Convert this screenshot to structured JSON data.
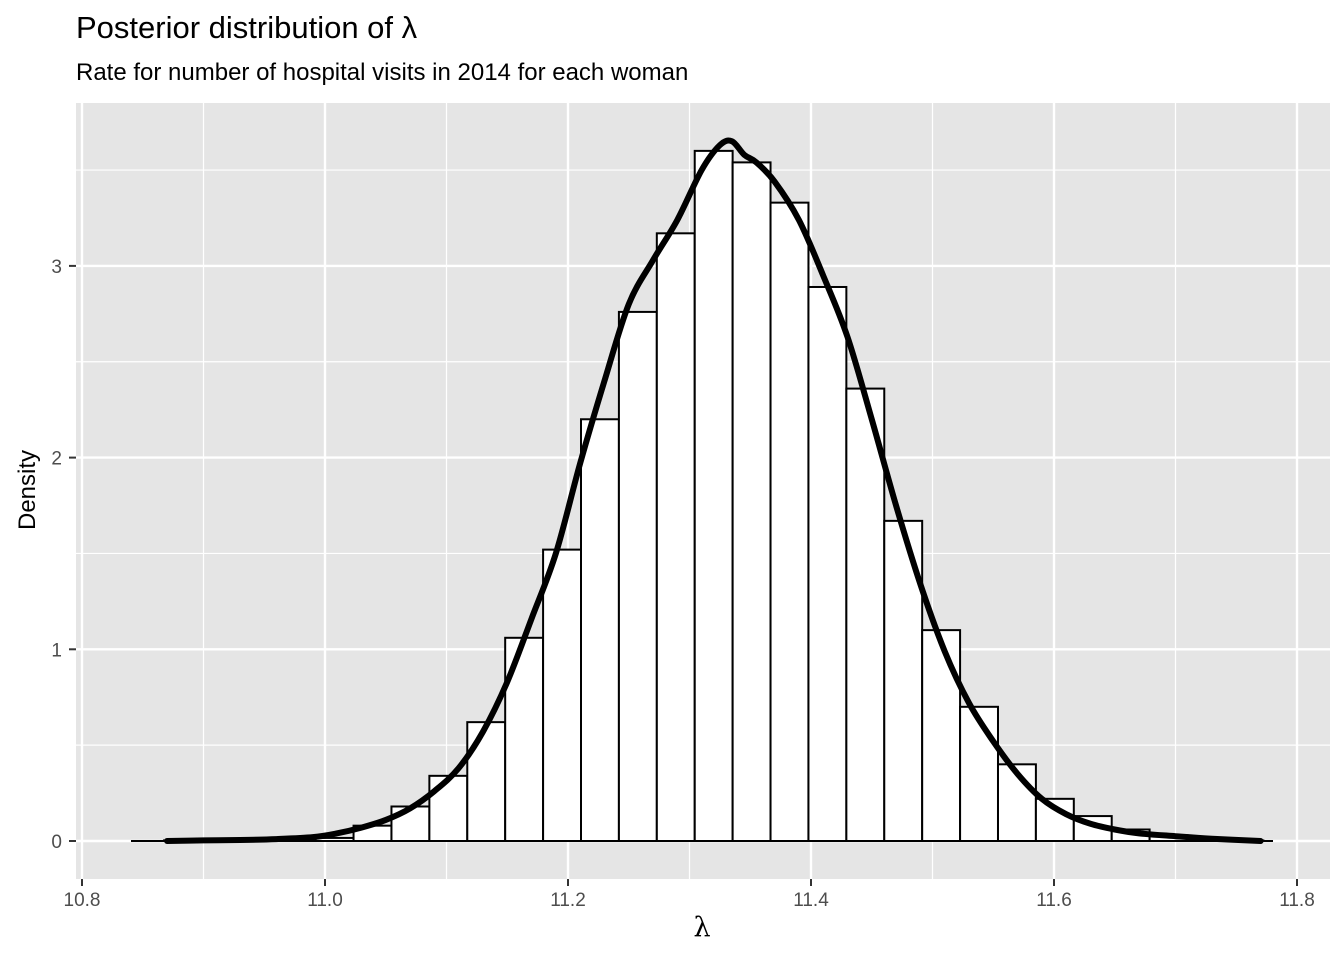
{
  "chart_data": {
    "type": "bar",
    "title": "Posterior distribution of λ",
    "subtitle": "Rate for number of hospital visits in 2014 for each woman",
    "xlabel": "λ",
    "ylabel": "Density",
    "xlim": [
      10.8,
      11.8
    ],
    "ylim": [
      -0.17,
      3.85
    ],
    "x_ticks": [
      "10.8",
      "11.0",
      "11.2",
      "11.4",
      "11.6",
      "11.8"
    ],
    "y_ticks": [
      "0",
      "1",
      "2",
      "3"
    ],
    "bin_width": 0.0312,
    "histogram": {
      "bin_starts": [
        10.8675,
        10.8987,
        10.9299,
        10.9611,
        10.9923,
        11.0235,
        11.0547,
        11.0859,
        11.1171,
        11.1483,
        11.1795,
        11.2107,
        11.2419,
        11.2731,
        11.3043,
        11.3355,
        11.3667,
        11.3979,
        11.4291,
        11.4603,
        11.4915,
        11.5227,
        11.5539,
        11.5851,
        11.6163,
        11.6475,
        11.6787,
        11.7099,
        11.7411
      ],
      "values": [
        0.003,
        0.0,
        0.003,
        0.0,
        0.016,
        0.08,
        0.18,
        0.34,
        0.62,
        1.06,
        1.52,
        2.2,
        2.76,
        3.17,
        3.6,
        3.54,
        3.33,
        2.89,
        2.36,
        1.67,
        1.1,
        0.7,
        0.4,
        0.22,
        0.13,
        0.06,
        0.03,
        0.01,
        0.003
      ]
    },
    "density_curve": {
      "x": [
        10.87,
        10.9,
        10.93,
        10.96,
        10.99,
        11.01,
        11.03,
        11.05,
        11.07,
        11.09,
        11.11,
        11.13,
        11.15,
        11.17,
        11.19,
        11.21,
        11.23,
        11.25,
        11.27,
        11.29,
        11.31,
        11.325,
        11.335,
        11.345,
        11.355,
        11.37,
        11.39,
        11.41,
        11.43,
        11.45,
        11.47,
        11.49,
        11.51,
        11.53,
        11.55,
        11.57,
        11.59,
        11.61,
        11.63,
        11.65,
        11.67,
        11.7,
        11.73,
        11.77
      ],
      "y": [
        0.0,
        0.003,
        0.005,
        0.01,
        0.02,
        0.04,
        0.07,
        0.11,
        0.17,
        0.26,
        0.38,
        0.57,
        0.83,
        1.16,
        1.5,
        1.97,
        2.4,
        2.8,
        3.03,
        3.24,
        3.5,
        3.63,
        3.65,
        3.58,
        3.54,
        3.44,
        3.24,
        2.95,
        2.63,
        2.2,
        1.75,
        1.34,
        0.99,
        0.72,
        0.52,
        0.35,
        0.22,
        0.14,
        0.09,
        0.06,
        0.04,
        0.025,
        0.012,
        0.0
      ]
    },
    "grid": true,
    "colors": {
      "panel": "#e5e5e5",
      "grid": "#ffffff",
      "bar_fill": "#ffffff",
      "bar_stroke": "#000000",
      "curve": "#000000"
    }
  }
}
